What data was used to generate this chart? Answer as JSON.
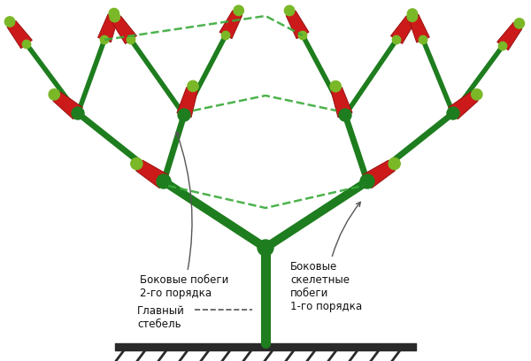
{
  "stem_color": "#1e7d1e",
  "pepper_red": "#cc1a1a",
  "pepper_green": "#7ab828",
  "pepper_dark_green": "#5a9a10",
  "node_color": "#1e7d1e",
  "dashed_color": "#3aaa3a",
  "bg_color": "#ffffff",
  "text_color": "#111111",
  "ground_color": "#222222",
  "stem_lw": 8,
  "branch1_lw": 7,
  "branch2_lw": 5,
  "branch3_lw": 4,
  "label_fontsize": 8.5,
  "label1": "Боковые побеги\n2-го порядка",
  "label2": "Главный\nстебель",
  "label3": "Боковые\nскелетные\nпобеги\n1-го порядка"
}
